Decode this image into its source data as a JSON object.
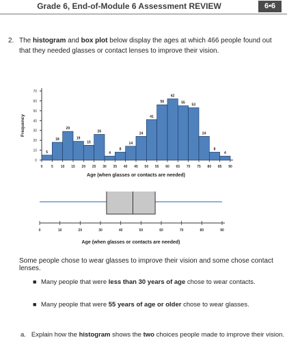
{
  "header": {
    "title": "Grade 6, End-of-Module 6 Assessment REVIEW",
    "badge": "6•6"
  },
  "question": {
    "number": "2.",
    "parts": [
      {
        "t": "The ",
        "b": false
      },
      {
        "t": "histogram",
        "b": true
      },
      {
        "t": " and ",
        "b": false
      },
      {
        "t": "box plot",
        "b": true
      },
      {
        "t": " below display the ages at which 466 people found out that they needed glasses or contact lenses to improve their vision.",
        "b": false
      }
    ]
  },
  "chart_data": [
    {
      "type": "bar",
      "ylabel": "Frequency",
      "xlabel": "Age (when glasses or contacts are needed)",
      "ylim": [
        0,
        70
      ],
      "yticks": [
        0,
        10,
        20,
        30,
        40,
        50,
        60,
        70
      ],
      "bins": [
        [
          0,
          5
        ],
        [
          5,
          10
        ],
        [
          10,
          15
        ],
        [
          15,
          20
        ],
        [
          20,
          25
        ],
        [
          25,
          30
        ],
        [
          30,
          35
        ],
        [
          35,
          40
        ],
        [
          40,
          45
        ],
        [
          45,
          50
        ],
        [
          50,
          55
        ],
        [
          55,
          60
        ],
        [
          60,
          65
        ],
        [
          65,
          70
        ],
        [
          70,
          75
        ],
        [
          75,
          80
        ],
        [
          80,
          85
        ],
        [
          85,
          90
        ]
      ],
      "values": [
        5,
        18,
        29,
        19,
        15,
        26,
        4,
        8,
        14,
        24,
        41,
        56,
        62,
        55,
        53,
        24,
        8,
        4
      ],
      "xticks": [
        0,
        5,
        10,
        15,
        20,
        25,
        30,
        35,
        40,
        45,
        50,
        55,
        60,
        65,
        70,
        75,
        80,
        85,
        90
      ],
      "colors": {
        "bar": "#4f81bd",
        "edge": "#1f3f6a"
      }
    },
    {
      "type": "box",
      "xlabel": "Age (when glasses or contacts are needed)",
      "xticks": [
        0,
        10,
        20,
        30,
        40,
        50,
        60,
        70,
        80,
        90
      ],
      "min": 0,
      "q1": 33,
      "median": 46,
      "q3": 57,
      "max": 90,
      "colors": {
        "box": "#c8c8c8",
        "whisker": "#4f81bd"
      }
    }
  ],
  "body": {
    "intro": "Some people chose to wear glasses to improve their vision and some chose contact lenses.",
    "bullets": [
      {
        "pre": "Many people that were ",
        "bold": "less than 30 years of age",
        "post": " chose to wear contacts."
      },
      {
        "pre": "Many people that were ",
        "bold": "55 years of age or older",
        "post": " chose to wear glasses."
      }
    ],
    "question_a": {
      "label": "a.",
      "pre": "Explain how the ",
      "bold1": "histogram",
      "mid": " shows the ",
      "bold2": "two",
      "post": " choices people made to improve their vision."
    },
    "bullet_glyph": "■"
  }
}
